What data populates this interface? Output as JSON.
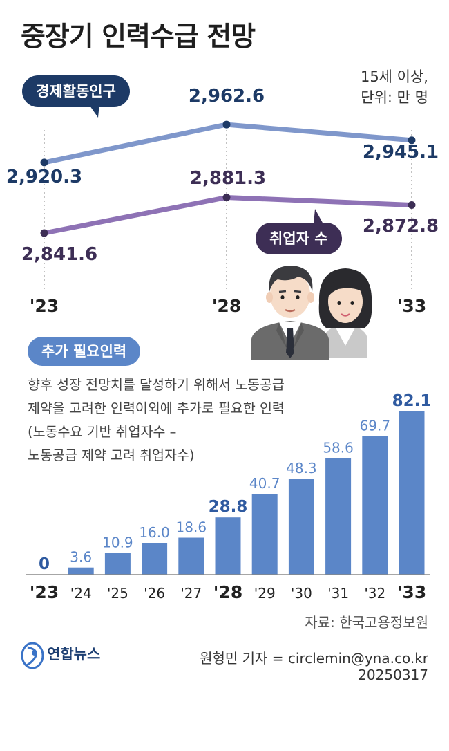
{
  "title": "중장기 인력수급 전망",
  "unit_note": [
    "15세 이상,",
    "단위: 만 명"
  ],
  "colors": {
    "econ_line": "#7f97cb",
    "econ_text": "#1d3a66",
    "emp_line": "#8e72b5",
    "emp_text": "#3d2e55",
    "bar": "#5b86c8",
    "bar_label": "#5b86c8",
    "bar_label_bold": "#2f5aa0"
  },
  "labels": {
    "econ_series": "경제활동인구",
    "emp_series": "취업자 수",
    "additional": "추가 필요인력"
  },
  "description": [
    "향후 성장 전망치를 달성하기 위해서 노동공급",
    "제약을 고려한 인력이외에 추가로 필요한 인력",
    "(노동수요 기반 취업자수 –",
    " 노동공급 제약 고려 취업자수)"
  ],
  "footer": {
    "source": "자료: 한국고용정보원",
    "logo_icon": "yonhap-logo-icon",
    "logo": "연합뉴스",
    "reporter": "원형민 기자 = circlemin@yna.co.kr",
    "date": "20250317"
  },
  "chart_data": [
    {
      "type": "line",
      "x": [
        "'23",
        "'28",
        "'33"
      ],
      "series": [
        {
          "name": "경제활동인구",
          "values": [
            2920.3,
            2962.6,
            2945.1
          ],
          "labels": [
            "2,920.3",
            "2,962.6",
            "2,945.1"
          ]
        },
        {
          "name": "취업자 수",
          "values": [
            2841.6,
            2881.3,
            2872.8
          ],
          "labels": [
            "2,841.6",
            "2,881.3",
            "2,872.8"
          ]
        }
      ]
    },
    {
      "type": "bar",
      "title": "추가 필요인력",
      "categories": [
        "'23",
        "'24",
        "'25",
        "'26",
        "'27",
        "'28",
        "'29",
        "'30",
        "'31",
        "'32",
        "'33"
      ],
      "values": [
        0,
        3.6,
        10.9,
        16.0,
        18.6,
        28.8,
        40.7,
        48.3,
        58.6,
        69.7,
        82.1
      ],
      "value_labels": [
        "0",
        "3.6",
        "10.9",
        "16.0",
        "18.6",
        "28.8",
        "40.7",
        "48.3",
        "58.6",
        "69.7",
        "82.1"
      ],
      "bold_categories": [
        "'23",
        "'28",
        "'33"
      ]
    }
  ]
}
